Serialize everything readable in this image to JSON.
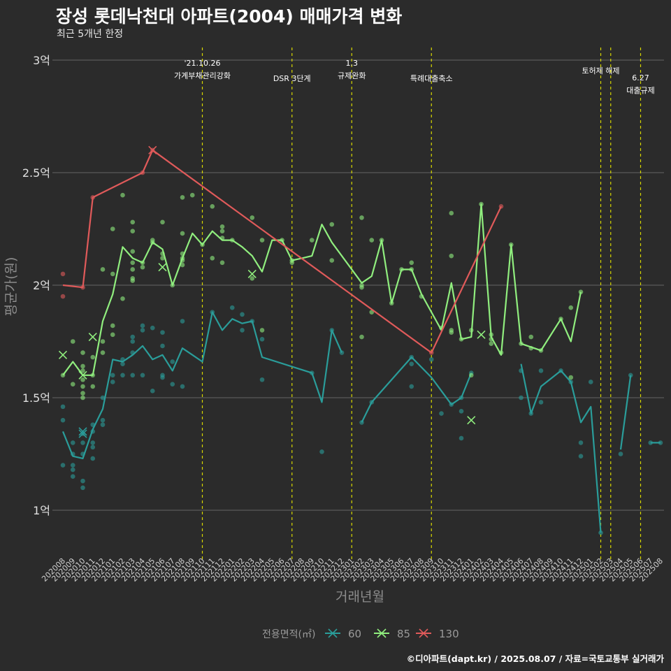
{
  "chart_data": {
    "type": "line",
    "title": "장성 롯데낙천대 아파트(2004) 매매가격 변화",
    "subtitle": "최근 5개년 한정",
    "xlabel": "거래년월",
    "ylabel": "평균가(원)",
    "caption": "©디아파트(dapt.kr) / 2025.08.07 / 자료=국토교통부 실거래가",
    "legend": {
      "title": "전용면적(㎡)",
      "position": "bottom"
    },
    "ylim": [
      0.8,
      3.05
    ],
    "yticks": [
      {
        "v": 1,
        "label": "1억"
      },
      {
        "v": 1.5,
        "label": "1.5억"
      },
      {
        "v": 2,
        "label": "2억"
      },
      {
        "v": 2.5,
        "label": "2.5억"
      },
      {
        "v": 3,
        "label": "3억"
      }
    ],
    "grid": true,
    "x": [
      "202008",
      "202009",
      "202010",
      "202011",
      "202012",
      "202101",
      "202102",
      "202103",
      "202104",
      "202105",
      "202106",
      "202107",
      "202108",
      "202109",
      "202110",
      "202111",
      "202112",
      "202201",
      "202202",
      "202203",
      "202204",
      "202205",
      "202206",
      "202207",
      "202208",
      "202209",
      "202210",
      "202211",
      "202212",
      "202301",
      "202302",
      "202303",
      "202304",
      "202305",
      "202306",
      "202307",
      "202308",
      "202309",
      "202310",
      "202311",
      "202312",
      "202401",
      "202402",
      "202403",
      "202404",
      "202405",
      "202406",
      "202407",
      "202408",
      "202409",
      "202410",
      "202411",
      "202412",
      "202501",
      "202502",
      "202503",
      "202504",
      "202505",
      "202506",
      "202507",
      "202508"
    ],
    "events": [
      {
        "x": "202110",
        "lines": [
          "'21.10.26",
          "가계부채관리강화"
        ],
        "row": 0
      },
      {
        "x": "202207",
        "lines": [
          "DSR 3단계"
        ],
        "row": 2
      },
      {
        "x": "202301",
        "lines": [
          "1.3",
          "규제완화"
        ],
        "row": 0
      },
      {
        "x": "202309",
        "lines": [
          "특례대출축소"
        ],
        "row": 2
      },
      {
        "x": "202502",
        "lines": [
          "토허제 해제"
        ],
        "row": 1
      },
      {
        "x": "202503",
        "lines": [],
        "row": 1
      },
      {
        "x": "202506",
        "lines": [
          "6.27",
          "대출규제"
        ],
        "row": 1.9
      }
    ],
    "series": [
      {
        "name": "60",
        "color": "#2a9d9a",
        "line": [
          [
            0,
            1.35
          ],
          [
            1,
            1.24
          ],
          [
            2,
            1.23
          ],
          [
            3,
            1.36
          ],
          [
            4,
            1.45
          ],
          [
            5,
            1.67
          ],
          [
            6,
            1.66
          ],
          [
            7,
            1.69
          ],
          [
            8,
            1.73
          ],
          [
            9,
            1.67
          ],
          [
            10,
            1.69
          ],
          [
            11,
            1.62
          ],
          [
            12,
            1.72
          ],
          [
            13,
            1.69
          ],
          [
            14,
            1.66
          ],
          [
            15,
            1.88
          ],
          [
            16,
            1.8
          ],
          [
            17,
            1.85
          ],
          [
            18,
            1.83
          ],
          [
            19,
            1.84
          ],
          [
            20,
            1.68
          ],
          [
            25,
            1.61
          ],
          [
            26,
            1.48
          ],
          [
            27,
            1.8
          ],
          [
            28,
            1.7
          ],
          null,
          [
            30,
            1.39
          ],
          [
            31,
            1.48
          ],
          [
            35,
            1.68
          ],
          [
            37,
            1.59
          ],
          [
            39,
            1.47
          ],
          [
            40,
            1.5
          ],
          [
            41,
            1.61
          ],
          null,
          [
            46,
            1.65
          ],
          [
            47,
            1.43
          ],
          [
            48,
            1.55
          ],
          [
            50,
            1.62
          ],
          [
            51,
            1.57
          ],
          [
            52,
            1.39
          ],
          [
            53,
            1.46
          ],
          [
            54,
            0.9
          ],
          null,
          [
            56,
            1.27
          ],
          [
            57,
            1.6
          ],
          null,
          [
            59,
            1.3
          ],
          [
            60,
            1.3
          ]
        ],
        "points": [
          [
            0,
            1.46
          ],
          [
            0,
            1.4
          ],
          [
            0,
            1.2
          ],
          [
            1,
            1.25
          ],
          [
            1,
            1.2
          ],
          [
            1,
            1.18
          ],
          [
            1,
            1.15
          ],
          [
            1,
            1.3
          ],
          [
            2,
            1.13
          ],
          [
            2,
            1.1
          ],
          [
            2,
            1.25
          ],
          [
            2,
            1.3
          ],
          [
            2,
            1.34
          ],
          [
            3,
            1.35
          ],
          [
            3,
            1.3
          ],
          [
            3,
            1.28
          ],
          [
            3,
            1.23
          ],
          [
            3,
            1.38
          ],
          [
            4,
            1.38
          ],
          [
            4,
            1.4
          ],
          [
            4,
            1.5
          ],
          [
            5,
            1.57
          ],
          [
            5,
            1.6
          ],
          [
            6,
            1.65
          ],
          [
            6,
            1.67
          ],
          [
            6,
            1.6
          ],
          [
            7,
            1.6
          ],
          [
            7,
            1.75
          ],
          [
            7,
            1.7
          ],
          [
            7,
            1.77
          ],
          [
            8,
            1.82
          ],
          [
            8,
            1.8
          ],
          [
            8,
            1.6
          ],
          [
            9,
            1.81
          ],
          [
            9,
            1.53
          ],
          [
            10,
            1.79
          ],
          [
            10,
            1.73
          ],
          [
            10,
            1.6
          ],
          [
            10,
            1.59
          ],
          [
            11,
            1.66
          ],
          [
            11,
            1.56
          ],
          [
            12,
            1.84
          ],
          [
            12,
            1.55
          ],
          [
            15,
            1.88
          ],
          [
            17,
            1.9
          ],
          [
            18,
            1.87
          ],
          [
            18,
            1.8
          ],
          [
            19,
            1.84
          ],
          [
            20,
            1.76
          ],
          [
            20,
            1.58
          ],
          [
            25,
            1.61
          ],
          [
            26,
            1.26
          ],
          [
            27,
            1.8
          ],
          [
            28,
            1.7
          ],
          [
            30,
            1.39
          ],
          [
            31,
            1.48
          ],
          [
            35,
            1.68
          ],
          [
            35,
            1.65
          ],
          [
            35,
            1.55
          ],
          [
            37,
            1.67
          ],
          [
            38,
            1.43
          ],
          [
            39,
            1.47
          ],
          [
            40,
            1.5
          ],
          [
            40,
            1.44
          ],
          [
            40,
            1.32
          ],
          [
            41,
            1.61
          ],
          [
            46,
            1.62
          ],
          [
            46,
            1.5
          ],
          [
            47,
            1.43
          ],
          [
            48,
            1.62
          ],
          [
            48,
            1.48
          ],
          [
            50,
            1.62
          ],
          [
            51,
            1.57
          ],
          [
            52,
            1.3
          ],
          [
            52,
            1.24
          ],
          [
            53,
            1.57
          ],
          [
            54,
            0.9
          ],
          [
            56,
            1.25
          ],
          [
            57,
            1.6
          ],
          [
            59,
            1.3
          ],
          [
            60,
            1.3
          ]
        ],
        "crosses": [
          [
            2,
            1.35
          ],
          [
            2,
            1.34
          ]
        ]
      },
      {
        "name": "85",
        "color": "#90ee7e",
        "line": [
          [
            0,
            1.6
          ],
          [
            1,
            1.66
          ],
          [
            2,
            1.6
          ],
          [
            3,
            1.6
          ],
          [
            4,
            1.84
          ],
          [
            5,
            1.96
          ],
          [
            6,
            2.17
          ],
          [
            7,
            2.12
          ],
          [
            8,
            2.1
          ],
          [
            9,
            2.19
          ],
          [
            10,
            2.16
          ],
          [
            11,
            2.0
          ],
          [
            12,
            2.12
          ],
          [
            13,
            2.23
          ],
          [
            14,
            2.18
          ],
          [
            15,
            2.24
          ],
          [
            16,
            2.2
          ],
          [
            17,
            2.2
          ],
          [
            18,
            2.17
          ],
          [
            19,
            2.13
          ],
          [
            20,
            2.06
          ],
          [
            21,
            2.2
          ],
          [
            22,
            2.2
          ],
          [
            23,
            2.11
          ],
          [
            24,
            2.12
          ],
          [
            25,
            2.13
          ],
          [
            26,
            2.27
          ],
          [
            27,
            2.19
          ],
          [
            30,
            2.01
          ],
          [
            31,
            2.04
          ],
          [
            32,
            2.2
          ],
          [
            33,
            1.92
          ],
          [
            34,
            2.07
          ],
          [
            35,
            2.07
          ],
          [
            36,
            1.96
          ],
          [
            38,
            1.8
          ],
          [
            39,
            2.01
          ],
          [
            40,
            1.76
          ],
          [
            41,
            1.77
          ],
          [
            42,
            2.36
          ],
          [
            43,
            1.77
          ],
          [
            44,
            1.69
          ],
          [
            45,
            2.18
          ],
          [
            46,
            1.74
          ],
          [
            48,
            1.71
          ],
          [
            50,
            1.85
          ],
          [
            51,
            1.75
          ],
          [
            52,
            1.97
          ]
        ],
        "points": [
          [
            0,
            1.6
          ],
          [
            1,
            1.75
          ],
          [
            1,
            1.56
          ],
          [
            2,
            1.55
          ],
          [
            2,
            1.52
          ],
          [
            2,
            1.5
          ],
          [
            2,
            1.58
          ],
          [
            2,
            1.62
          ],
          [
            2,
            1.64
          ],
          [
            2,
            1.7
          ],
          [
            3,
            1.68
          ],
          [
            3,
            1.55
          ],
          [
            3,
            1.6
          ],
          [
            4,
            2.07
          ],
          [
            4,
            1.75
          ],
          [
            4,
            1.7
          ],
          [
            5,
            2.25
          ],
          [
            5,
            2.05
          ],
          [
            5,
            1.82
          ],
          [
            5,
            1.78
          ],
          [
            6,
            2.4
          ],
          [
            6,
            1.94
          ],
          [
            7,
            2.28
          ],
          [
            7,
            2.24
          ],
          [
            7,
            2.15
          ],
          [
            7,
            2.1
          ],
          [
            7,
            2.07
          ],
          [
            7,
            2.03
          ],
          [
            7,
            2.02
          ],
          [
            8,
            2.1
          ],
          [
            8,
            2.08
          ],
          [
            9,
            2.2
          ],
          [
            9,
            2.19
          ],
          [
            10,
            2.28
          ],
          [
            10,
            2.14
          ],
          [
            10,
            2.12
          ],
          [
            11,
            2.0
          ],
          [
            12,
            2.39
          ],
          [
            12,
            2.23
          ],
          [
            12,
            2.14
          ],
          [
            12,
            2.12
          ],
          [
            12,
            2.11
          ],
          [
            12,
            2.09
          ],
          [
            13,
            2.4
          ],
          [
            14,
            2.18
          ],
          [
            15,
            2.35
          ],
          [
            15,
            2.12
          ],
          [
            16,
            2.26
          ],
          [
            16,
            2.24
          ],
          [
            16,
            2.21
          ],
          [
            16,
            2.1
          ],
          [
            17,
            2.2
          ],
          [
            19,
            2.3
          ],
          [
            19,
            2.03
          ],
          [
            20,
            2.2
          ],
          [
            20,
            1.8
          ],
          [
            22,
            2.2
          ],
          [
            23,
            2.11
          ],
          [
            23,
            2.1
          ],
          [
            25,
            2.2
          ],
          [
            27,
            2.27
          ],
          [
            27,
            2.11
          ],
          [
            30,
            2.3
          ],
          [
            30,
            2.0
          ],
          [
            30,
            1.99
          ],
          [
            30,
            1.77
          ],
          [
            31,
            2.2
          ],
          [
            31,
            1.88
          ],
          [
            32,
            2.2
          ],
          [
            33,
            1.92
          ],
          [
            34,
            2.07
          ],
          [
            35,
            2.1
          ],
          [
            35,
            2.07
          ],
          [
            36,
            1.95
          ],
          [
            38,
            1.81
          ],
          [
            39,
            2.32
          ],
          [
            39,
            2.13
          ],
          [
            39,
            1.8
          ],
          [
            39,
            1.79
          ],
          [
            40,
            1.76
          ],
          [
            41,
            1.8
          ],
          [
            41,
            1.6
          ],
          [
            42,
            2.36
          ],
          [
            43,
            1.78
          ],
          [
            43,
            1.76
          ],
          [
            43,
            1.74
          ],
          [
            44,
            1.7
          ],
          [
            45,
            2.18
          ],
          [
            46,
            1.74
          ],
          [
            47,
            1.77
          ],
          [
            47,
            1.72
          ],
          [
            48,
            1.71
          ],
          [
            50,
            1.85
          ],
          [
            51,
            1.9
          ],
          [
            51,
            1.59
          ],
          [
            52,
            1.97
          ]
        ],
        "crosses": [
          [
            0,
            1.69
          ],
          [
            2,
            1.6
          ],
          [
            3,
            1.77
          ],
          [
            10,
            2.08
          ],
          [
            19,
            2.05
          ],
          [
            41,
            1.4
          ],
          [
            42,
            1.78
          ]
        ]
      },
      {
        "name": "130",
        "color": "#e05a5a",
        "line": [
          [
            0,
            2.0
          ],
          [
            2,
            1.99
          ],
          [
            3,
            2.39
          ],
          [
            8,
            2.5
          ],
          [
            9,
            2.6
          ],
          [
            37,
            1.7
          ],
          [
            44,
            2.35
          ]
        ],
        "points": [
          [
            0,
            2.05
          ],
          [
            0,
            1.95
          ],
          [
            2,
            1.99
          ],
          [
            3,
            2.39
          ],
          [
            8,
            2.5
          ],
          [
            9,
            2.6
          ],
          [
            37,
            1.7
          ],
          [
            44,
            2.35
          ]
        ],
        "crosses": [
          [
            9,
            2.6
          ]
        ]
      }
    ]
  }
}
